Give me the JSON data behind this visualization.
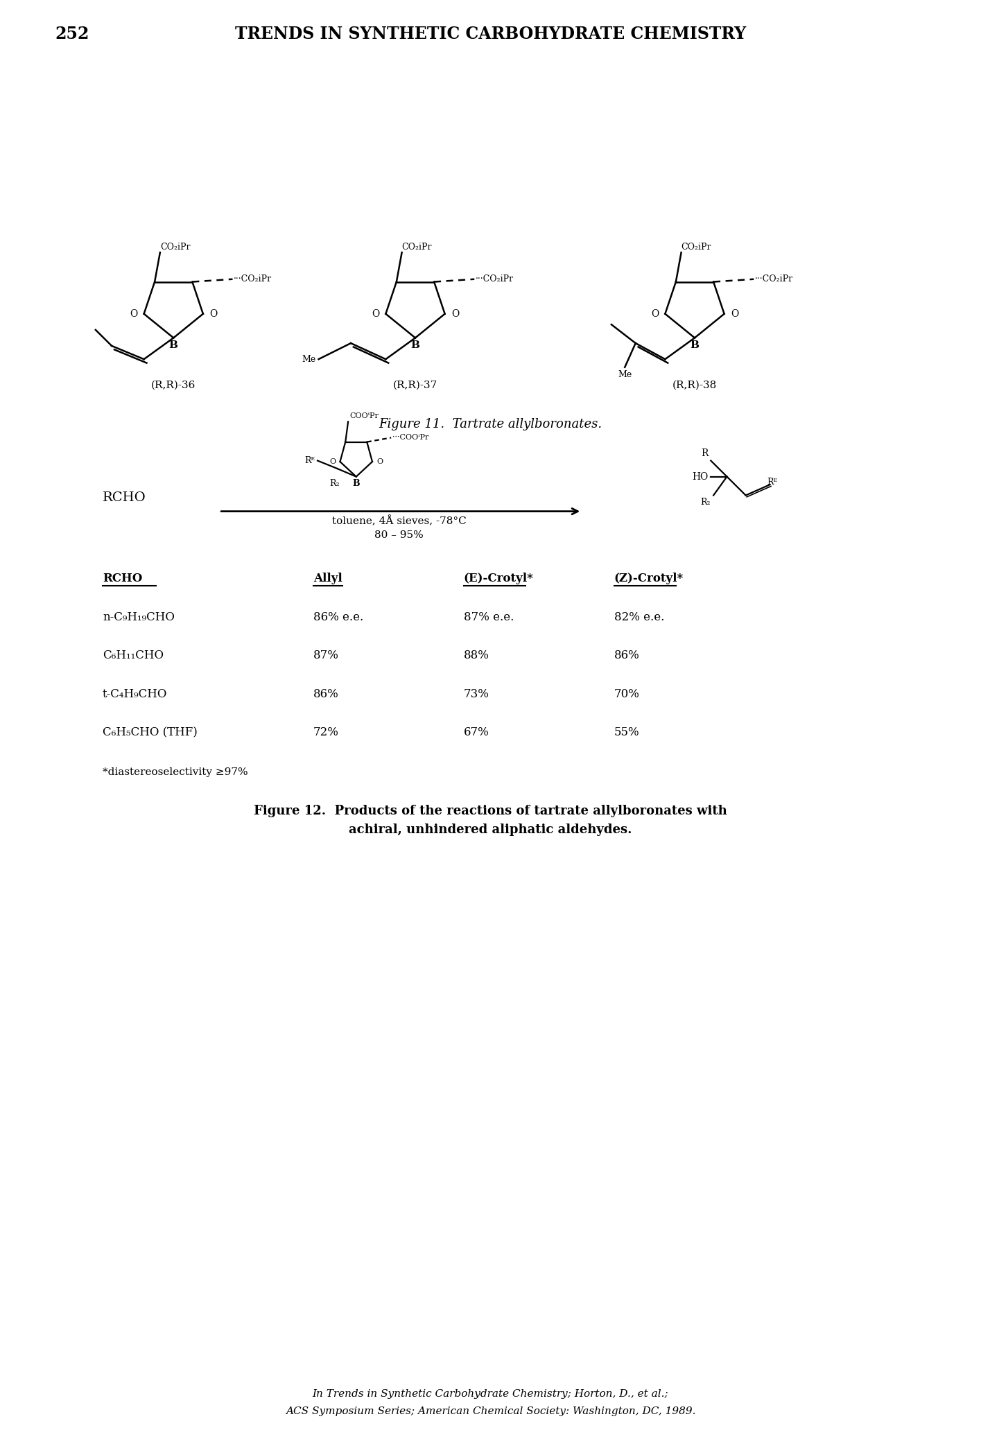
{
  "page_number": "252",
  "header": "TRENDS IN SYNTHETIC CARBOHYDRATE CHEMISTRY",
  "fig11_caption": "Figure 11.  Tartrate allylboronates.",
  "fig12_caption_line1": "Figure 12.  Products of the reactions of tartrate allylboronates with",
  "fig12_caption_line2": "achiral, unhindered aliphatic aldehydes.",
  "footnote_line1": "In Trends in Synthetic Carbohydrate Chemistry; Horton, D., et al.;",
  "footnote_line2": "ACS Symposium Series; American Chemical Society: Washington, DC, 1989.",
  "table_header_rcho": "RCHO",
  "table_header_allyl": "Allyl",
  "table_header_e": "(E)-Crotyl*",
  "table_header_z": "(Z)-Crotyl*",
  "table_rows": [
    [
      "n-C₉H₁₉CHO",
      "86% e.e.",
      "87% e.e.",
      "82% e.e."
    ],
    [
      "C₆H₁₁CHO",
      "87%",
      "88%",
      "86%"
    ],
    [
      "t-C₄H₉CHO",
      "86%",
      "73%",
      "70%"
    ],
    [
      "C₆H₅CHO (THF)",
      "72%",
      "67%",
      "55%"
    ]
  ],
  "footnote_table": "*diastereoselectivity ≥97%",
  "reaction_conditions": "toluene, 4Å sieves, -78°C",
  "reaction_yield": "80 – 95%",
  "rcho_label": "RCHO",
  "bg_color": "#ffffff",
  "text_color": "#000000"
}
